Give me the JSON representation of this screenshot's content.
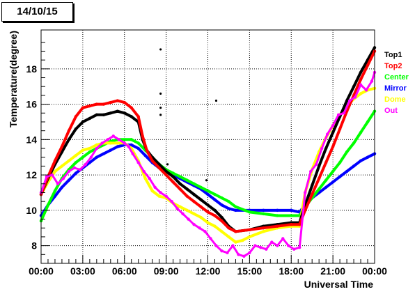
{
  "chart_data": {
    "type": "scatter",
    "title": "14/10/15",
    "xlabel": "Universal Time",
    "ylabel": "Temperature(degree)",
    "xlim": [
      0,
      24
    ],
    "ylim": [
      7,
      20.2
    ],
    "x_ticks": [
      {
        "value": 0,
        "label": "00:00"
      },
      {
        "value": 3,
        "label": "03:00"
      },
      {
        "value": 6,
        "label": "06:00"
      },
      {
        "value": 9,
        "label": "09:00"
      },
      {
        "value": 12,
        "label": "12:00"
      },
      {
        "value": 15,
        "label": "15:00"
      },
      {
        "value": 18,
        "label": "18:00"
      },
      {
        "value": 21,
        "label": "21:00"
      },
      {
        "value": 24,
        "label": "00:00"
      }
    ],
    "y_ticks": [
      8,
      10,
      12,
      14,
      16,
      18
    ],
    "grid": true,
    "legend_position": "right",
    "series": [
      {
        "name": "Top1",
        "color": "#000000",
        "x": [
          0,
          0.5,
          1,
          1.5,
          2,
          2.5,
          3,
          3.5,
          4,
          4.5,
          5,
          5.5,
          6,
          6.5,
          7,
          7.3,
          7.6,
          8,
          8.5,
          9,
          9.5,
          10,
          10.5,
          11,
          11.5,
          12,
          12.5,
          13,
          13.5,
          14,
          15,
          16,
          17,
          18,
          18.6,
          19,
          19.5,
          20,
          20.5,
          21,
          21.5,
          22,
          22.5,
          23,
          23.5,
          24
        ],
        "y": [
          10.9,
          11.8,
          12.6,
          13.3,
          14.0,
          14.6,
          15.0,
          15.2,
          15.4,
          15.4,
          15.5,
          15.6,
          15.5,
          15.3,
          15.0,
          14.0,
          13.4,
          13.0,
          12.6,
          12.2,
          11.9,
          11.5,
          11.2,
          10.9,
          10.6,
          10.3,
          10.0,
          9.6,
          9.1,
          8.8,
          8.9,
          9.1,
          9.2,
          9.3,
          9.3,
          10.3,
          11.4,
          12.5,
          13.5,
          14.4,
          15.3,
          16.2,
          17.0,
          17.8,
          18.5,
          19.2
        ]
      },
      {
        "name": "Top2",
        "color": "#ff0000",
        "x": [
          0,
          0.5,
          1,
          1.5,
          2,
          2.5,
          3,
          3.5,
          4,
          4.5,
          5,
          5.5,
          6,
          6.5,
          7,
          7.3,
          7.6,
          8,
          8.5,
          9,
          9.5,
          10,
          10.5,
          11,
          11.5,
          12,
          12.5,
          13,
          13.5,
          14,
          15,
          16,
          17,
          18,
          18.6,
          19,
          19.5,
          20,
          20.5,
          21,
          21.5,
          22,
          22.5,
          23,
          23.5,
          24
        ],
        "y": [
          10.9,
          11.9,
          12.8,
          13.6,
          14.5,
          15.3,
          15.8,
          15.9,
          16.0,
          16.0,
          16.1,
          16.2,
          16.1,
          15.8,
          15.3,
          14.2,
          13.4,
          12.8,
          12.4,
          12.0,
          11.6,
          11.2,
          10.8,
          10.5,
          10.2,
          9.9,
          9.7,
          9.4,
          9.0,
          8.8,
          8.9,
          9.0,
          9.1,
          9.2,
          9.2,
          10.0,
          10.9,
          11.8,
          12.7,
          13.6,
          14.6,
          15.6,
          16.5,
          17.4,
          18.2,
          19.0
        ]
      },
      {
        "name": "Center",
        "color": "#00ff00",
        "x": [
          0,
          0.5,
          1,
          1.5,
          2,
          2.5,
          3,
          3.5,
          4,
          4.5,
          5,
          5.5,
          6,
          6.5,
          7,
          7.5,
          8,
          8.5,
          9,
          9.5,
          10,
          10.5,
          11,
          11.5,
          12,
          12.5,
          13,
          13.5,
          14,
          15,
          16,
          17,
          18,
          18.6,
          19,
          19.5,
          20,
          20.5,
          21,
          21.5,
          22,
          22.5,
          23,
          23.5,
          24
        ],
        "y": [
          9.4,
          10.3,
          11.1,
          11.8,
          12.3,
          12.7,
          13.0,
          13.3,
          13.5,
          13.7,
          13.9,
          14.0,
          14.0,
          14.0,
          13.8,
          13.4,
          13.0,
          12.6,
          12.3,
          12.1,
          11.9,
          11.7,
          11.5,
          11.3,
          11.1,
          10.9,
          10.7,
          10.5,
          10.2,
          9.9,
          9.8,
          9.7,
          9.7,
          9.7,
          10.2,
          10.7,
          11.2,
          11.7,
          12.2,
          12.7,
          13.3,
          13.8,
          14.4,
          15.0,
          15.6
        ]
      },
      {
        "name": "Mirror",
        "color": "#0000ff",
        "x": [
          0,
          0.5,
          1,
          1.5,
          2,
          2.5,
          3,
          3.5,
          4,
          4.5,
          5,
          5.5,
          6,
          6.5,
          7,
          7.5,
          8,
          8.5,
          9,
          9.5,
          10,
          10.5,
          11,
          11.5,
          12,
          12.5,
          13,
          13.5,
          14,
          15,
          16,
          17,
          18,
          18.6,
          19,
          19.5,
          20,
          20.5,
          21,
          21.5,
          22,
          22.5,
          23,
          23.5,
          24
        ],
        "y": [
          9.7,
          10.3,
          10.8,
          11.3,
          11.7,
          12.1,
          12.4,
          12.7,
          13.0,
          13.2,
          13.4,
          13.6,
          13.7,
          13.7,
          13.5,
          13.1,
          12.7,
          12.4,
          12.2,
          12.0,
          11.8,
          11.6,
          11.4,
          11.2,
          10.9,
          10.6,
          10.3,
          10.1,
          10.0,
          10.0,
          10.0,
          10.0,
          10.0,
          9.9,
          10.3,
          10.7,
          11.0,
          11.3,
          11.6,
          11.9,
          12.2,
          12.5,
          12.8,
          13.0,
          13.2
        ]
      },
      {
        "name": "Dome",
        "color": "#ffff00",
        "x": [
          0,
          0.5,
          1,
          1.5,
          2,
          2.5,
          3,
          3.5,
          4,
          4.5,
          5,
          5.5,
          6,
          6.5,
          7,
          7.5,
          8,
          8.5,
          9,
          9.5,
          10,
          10.5,
          11,
          11.5,
          12,
          12.5,
          13,
          13.5,
          14,
          14.5,
          15,
          16,
          17,
          18,
          18.6,
          19,
          19.5,
          20,
          20.5,
          21,
          21.5,
          22,
          22.5,
          23,
          23.5,
          24
        ],
        "y": [
          10.9,
          11.6,
          12.2,
          12.5,
          12.8,
          13.1,
          13.4,
          13.5,
          13.7,
          13.8,
          13.8,
          13.8,
          13.8,
          13.5,
          12.8,
          11.8,
          11.1,
          10.8,
          10.7,
          10.4,
          10.2,
          10.0,
          9.8,
          9.6,
          9.3,
          9.1,
          8.8,
          8.5,
          8.2,
          8.3,
          8.5,
          8.8,
          9.0,
          9.1,
          9.1,
          11.0,
          12.3,
          13.3,
          14.1,
          14.8,
          15.4,
          15.9,
          16.3,
          16.6,
          16.8,
          16.9
        ]
      },
      {
        "name": "Out",
        "color": "#ff00ff",
        "x": [
          0,
          0.4,
          0.8,
          1.2,
          1.6,
          2,
          2.4,
          2.8,
          3.2,
          3.6,
          4,
          4.4,
          4.8,
          5.2,
          5.6,
          6,
          6.3,
          6.6,
          7,
          7.4,
          7.8,
          8.2,
          8.6,
          9,
          9.4,
          9.8,
          10.2,
          10.6,
          11,
          11.4,
          11.8,
          12.2,
          12.6,
          13,
          13.4,
          13.8,
          14.2,
          14.6,
          15,
          15.4,
          15.8,
          16.2,
          16.6,
          17,
          17.4,
          17.8,
          18.2,
          18.6,
          19,
          19.4,
          19.8,
          20.2,
          20.6,
          21,
          21.4,
          21.8,
          22.2,
          22.6,
          23,
          23.4,
          23.8,
          24
        ],
        "y": [
          11.0,
          11.9,
          12.0,
          11.5,
          11.8,
          12.2,
          12.4,
          12.3,
          12.6,
          13.0,
          13.5,
          13.8,
          14.0,
          14.2,
          14.0,
          13.8,
          13.6,
          13.2,
          12.7,
          12.2,
          11.8,
          11.3,
          11.0,
          10.8,
          10.5,
          10.1,
          9.8,
          9.5,
          9.2,
          9.0,
          8.8,
          8.4,
          8.0,
          7.7,
          7.6,
          8.0,
          7.5,
          7.4,
          7.6,
          8.0,
          7.9,
          7.8,
          8.2,
          8.0,
          8.4,
          8.0,
          7.8,
          7.9,
          11.0,
          12.2,
          12.6,
          13.5,
          14.3,
          14.8,
          15.4,
          15.5,
          16.2,
          16.4,
          17.1,
          16.8,
          17.3,
          17.8
        ]
      }
    ],
    "outliers": [
      {
        "x": 8.6,
        "y": 19.1
      },
      {
        "x": 8.6,
        "y": 16.6
      },
      {
        "x": 8.6,
        "y": 15.8
      },
      {
        "x": 8.6,
        "y": 15.4
      },
      {
        "x": 12.6,
        "y": 16.2
      },
      {
        "x": 11.9,
        "y": 11.7
      },
      {
        "x": 9.1,
        "y": 12.6
      }
    ]
  }
}
